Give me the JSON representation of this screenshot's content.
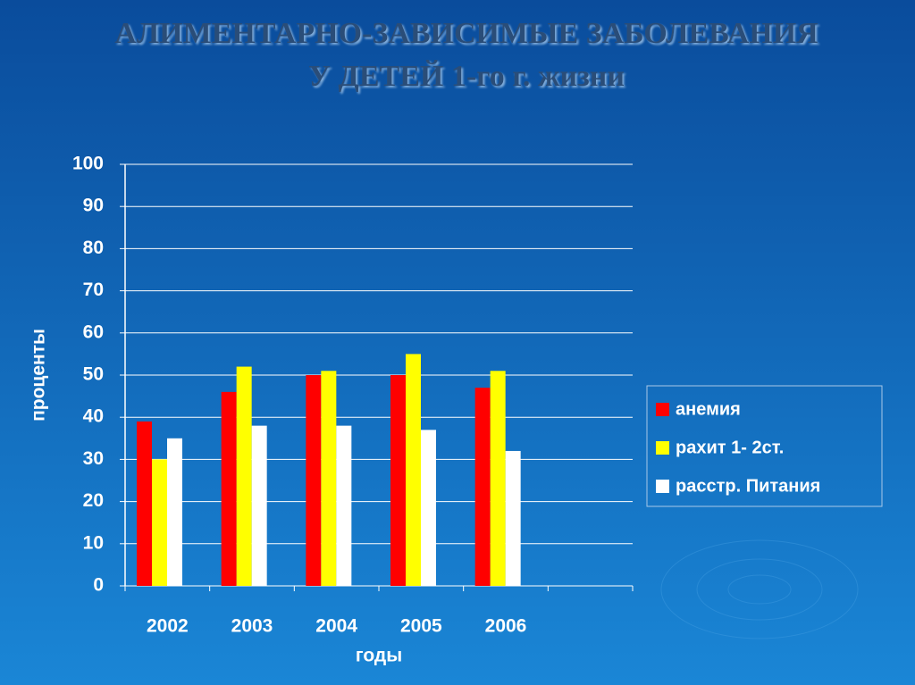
{
  "chart_data": {
    "type": "bar",
    "title": [
      "АЛИМЕНТАРНО-ЗАВИСИМЫЕ ЗАБОЛЕВАНИЯ",
      "У ДЕТЕЙ 1-го г. жизни"
    ],
    "y_label": "проценты",
    "x_label": "годы",
    "categories": [
      "2002",
      "2003",
      "2004",
      "2005",
      "2006",
      null
    ],
    "series": [
      {
        "name": "анемия",
        "color": "#ff0000",
        "values": [
          39,
          46,
          50,
          50,
          47,
          null
        ]
      },
      {
        "name": "рахит 1- 2ст.",
        "color": "#ffff00",
        "values": [
          30,
          52,
          51,
          55,
          51,
          null
        ]
      },
      {
        "name": "расстр. Питания",
        "color": "#ffffff",
        "values": [
          35,
          38,
          38,
          37,
          32,
          null
        ]
      }
    ],
    "ylim": [
      0,
      100
    ],
    "yticks": [
      0,
      10,
      20,
      30,
      40,
      50,
      60,
      70,
      80,
      90,
      100
    ],
    "grid": true,
    "legend": "right"
  }
}
